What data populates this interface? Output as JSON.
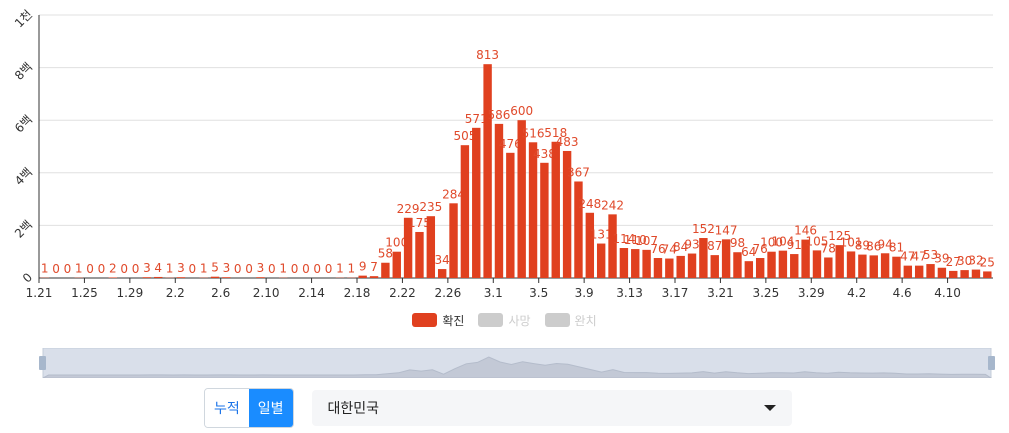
{
  "chart_data": {
    "type": "bar",
    "ylim": [
      0,
      1000
    ],
    "y_ticks": [
      {
        "value": 0,
        "label": "0"
      },
      {
        "value": 200,
        "label": "2백"
      },
      {
        "value": 400,
        "label": "4백"
      },
      {
        "value": 600,
        "label": "6백"
      },
      {
        "value": 800,
        "label": "8백"
      },
      {
        "value": 1000,
        "label": "1천"
      }
    ],
    "categories": [
      "1.21",
      "1.22",
      "1.23",
      "1.24",
      "1.25",
      "1.26",
      "1.27",
      "1.28",
      "1.29",
      "1.30",
      "1.31",
      "2.1",
      "2.2",
      "2.3",
      "2.4",
      "2.5",
      "2.6",
      "2.7",
      "2.8",
      "2.9",
      "2.10",
      "2.11",
      "2.12",
      "2.13",
      "2.14",
      "2.15",
      "2.16",
      "2.17",
      "2.18",
      "2.19",
      "2.20",
      "2.21",
      "2.22",
      "2.23",
      "2.24",
      "2.25",
      "2.26",
      "2.27",
      "2.28",
      "2.29",
      "3.1",
      "3.2",
      "3.3",
      "3.4",
      "3.5",
      "3.6",
      "3.7",
      "3.8",
      "3.9",
      "3.10",
      "3.11",
      "3.12",
      "3.13",
      "3.14",
      "3.15",
      "3.16",
      "3.17",
      "3.18",
      "3.19",
      "3.20",
      "3.21",
      "3.22",
      "3.23",
      "3.24",
      "3.25",
      "3.26",
      "3.27",
      "3.28",
      "3.29",
      "3.30",
      "3.31",
      "4.1",
      "4.2",
      "4.3",
      "4.4",
      "4.5",
      "4.6",
      "4.7",
      "4.8",
      "4.9",
      "4.10",
      "4.11",
      "4.12",
      "4.13"
    ],
    "shown_x_ticks": [
      "1.21",
      "1.25",
      "1.29",
      "2.2",
      "2.6",
      "2.10",
      "2.14",
      "2.18",
      "2.22",
      "2.26",
      "3.1",
      "3.5",
      "3.9",
      "3.13",
      "3.17",
      "3.21",
      "3.25",
      "3.29",
      "4.2",
      "4.6",
      "4.10"
    ],
    "series": [
      {
        "name": "확진",
        "values": [
          1,
          0,
          0,
          1,
          0,
          0,
          2,
          0,
          0,
          3,
          4,
          1,
          3,
          0,
          1,
          5,
          3,
          0,
          0,
          3,
          0,
          1,
          0,
          0,
          0,
          0,
          1,
          1,
          9,
          7,
          58,
          100,
          229,
          175,
          235,
          34,
          284,
          505,
          571,
          813,
          586,
          476,
          600,
          516,
          438,
          518,
          483,
          367,
          248,
          131,
          242,
          114,
          110,
          107,
          76,
          74,
          84,
          93,
          152,
          87,
          147,
          98,
          64,
          76,
          100,
          104,
          91,
          146,
          105,
          78,
          125,
          101,
          89,
          86,
          94,
          81,
          47,
          47,
          53,
          39,
          27,
          30,
          32,
          25
        ]
      }
    ],
    "legend": [
      {
        "name": "확진",
        "color": "#e0401f",
        "active": true
      },
      {
        "name": "사망",
        "color": "#cccccc",
        "active": false
      },
      {
        "name": "완치",
        "color": "#cccccc",
        "active": false
      }
    ],
    "colors": {
      "bar": "#e0401f",
      "label": "#e04a2b",
      "grid": "#e0e0e0",
      "axis": "#333333"
    },
    "legend_position": "bottom"
  },
  "controls": {
    "cumulative_label": "누적",
    "daily_label": "일별",
    "region_value": "대한민국"
  }
}
